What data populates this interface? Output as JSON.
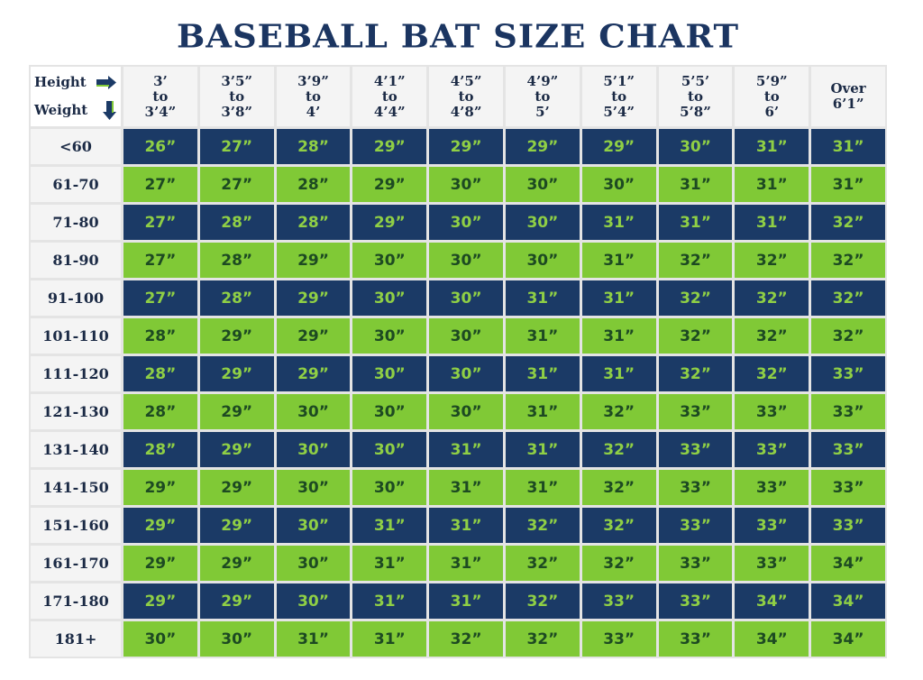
{
  "chart_data": {
    "type": "table",
    "title": "BASEBALL BAT SIZE CHART",
    "corner": {
      "height_label": "Height",
      "weight_label": "Weight"
    },
    "columns": [
      [
        "3’",
        "to",
        "3’4”"
      ],
      [
        "3’5”",
        "to",
        "3’8”"
      ],
      [
        "3’9”",
        "to",
        "4’"
      ],
      [
        "4’1”",
        "to",
        "4’4”"
      ],
      [
        "4’5”",
        "to",
        "4’8”"
      ],
      [
        "4’9”",
        "to",
        "5’"
      ],
      [
        "5’1”",
        "to",
        "5’4”"
      ],
      [
        "5’5’",
        "to",
        "5’8”"
      ],
      [
        "5’9”",
        "to",
        "6’"
      ],
      [
        "Over",
        "6’1”"
      ]
    ],
    "rows": [
      "<60",
      "61-70",
      "71-80",
      "81-90",
      "91-100",
      "101-110",
      "111-120",
      "121-130",
      "131-140",
      "141-150",
      "151-160",
      "161-170",
      "171-180",
      "181+"
    ],
    "values": [
      [
        "26”",
        "27”",
        "28”",
        "29”",
        "29”",
        "29”",
        "29”",
        "30”",
        "31”",
        "31”"
      ],
      [
        "27”",
        "27”",
        "28”",
        "29”",
        "30”",
        "30”",
        "30”",
        "31”",
        "31”",
        "31”"
      ],
      [
        "27”",
        "28”",
        "28”",
        "29”",
        "30”",
        "30”",
        "31”",
        "31”",
        "31”",
        "32”"
      ],
      [
        "27”",
        "28”",
        "29”",
        "30”",
        "30”",
        "30”",
        "31”",
        "32”",
        "32”",
        "32”"
      ],
      [
        "27”",
        "28”",
        "29”",
        "30”",
        "30”",
        "31”",
        "31”",
        "32”",
        "32”",
        "32”"
      ],
      [
        "28”",
        "29”",
        "29”",
        "30”",
        "30”",
        "31”",
        "31”",
        "32”",
        "32”",
        "32”"
      ],
      [
        "28”",
        "29”",
        "29”",
        "30”",
        "30”",
        "31”",
        "31”",
        "32”",
        "32”",
        "33”"
      ],
      [
        "28”",
        "29”",
        "30”",
        "30”",
        "30”",
        "31”",
        "32”",
        "33”",
        "33”",
        "33”"
      ],
      [
        "28”",
        "29”",
        "30”",
        "30”",
        "31”",
        "31”",
        "32”",
        "33”",
        "33”",
        "33”"
      ],
      [
        "29”",
        "29”",
        "30”",
        "30”",
        "31”",
        "31”",
        "32”",
        "33”",
        "33”",
        "33”"
      ],
      [
        "29”",
        "29”",
        "30”",
        "31”",
        "31”",
        "32”",
        "32”",
        "33”",
        "33”",
        "33”"
      ],
      [
        "29”",
        "29”",
        "30”",
        "31”",
        "31”",
        "32”",
        "32”",
        "33”",
        "33”",
        "34”"
      ],
      [
        "29”",
        "29”",
        "30”",
        "31”",
        "31”",
        "32”",
        "33”",
        "33”",
        "34”",
        "34”"
      ],
      [
        "30”",
        "30”",
        "31”",
        "31”",
        "32”",
        "32”",
        "33”",
        "33”",
        "34”",
        "34”"
      ]
    ],
    "colors": {
      "odd_row": "#1b3a66",
      "even_row": "#80c936",
      "odd_text": "#8fcf45",
      "even_text": "#1d4a22",
      "title": "#1b3561"
    },
    "icons": {
      "height": "arrow-right-icon",
      "weight": "arrow-down-icon"
    }
  }
}
